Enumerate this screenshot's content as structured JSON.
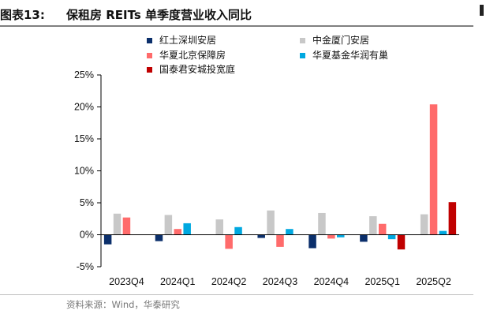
{
  "header": {
    "figure_label": "图表13:",
    "title": "保租房 REITs 单季度营业收入同比"
  },
  "source": "资料来源：Wind，华泰研究",
  "chart_data": {
    "type": "bar",
    "categories": [
      "2023Q4",
      "2024Q1",
      "2024Q2",
      "2024Q3",
      "2024Q4",
      "2025Q1",
      "2025Q2"
    ],
    "ylim": [
      -5,
      25
    ],
    "yticks": [
      -5,
      0,
      5,
      10,
      15,
      20,
      25
    ],
    "ytick_labels": [
      "-5%",
      "0%",
      "5%",
      "10%",
      "15%",
      "20%",
      "25%"
    ],
    "legend_placement": "top",
    "grid": false,
    "series": [
      {
        "name": "红土深圳安居",
        "color": "#0b2f6b",
        "values": [
          -1.5,
          -1.0,
          null,
          -0.5,
          -2.1,
          -1.1,
          null
        ]
      },
      {
        "name": "中金厦门安居",
        "color": "#c8c8c8",
        "values": [
          3.3,
          3.1,
          2.4,
          3.8,
          3.4,
          2.9,
          3.2
        ]
      },
      {
        "name": "华夏北京保障房",
        "color": "#ff6b6b",
        "values": [
          2.7,
          0.9,
          -2.2,
          -1.9,
          -0.6,
          1.7,
          20.4
        ]
      },
      {
        "name": "华夏基金华润有巢",
        "color": "#00a8e0",
        "values": [
          null,
          1.8,
          1.2,
          0.9,
          -0.4,
          -0.7,
          0.6
        ]
      },
      {
        "name": "国泰君安城投宽庭",
        "color": "#c00000",
        "values": [
          null,
          null,
          null,
          null,
          null,
          -2.3,
          5.1
        ]
      }
    ]
  }
}
